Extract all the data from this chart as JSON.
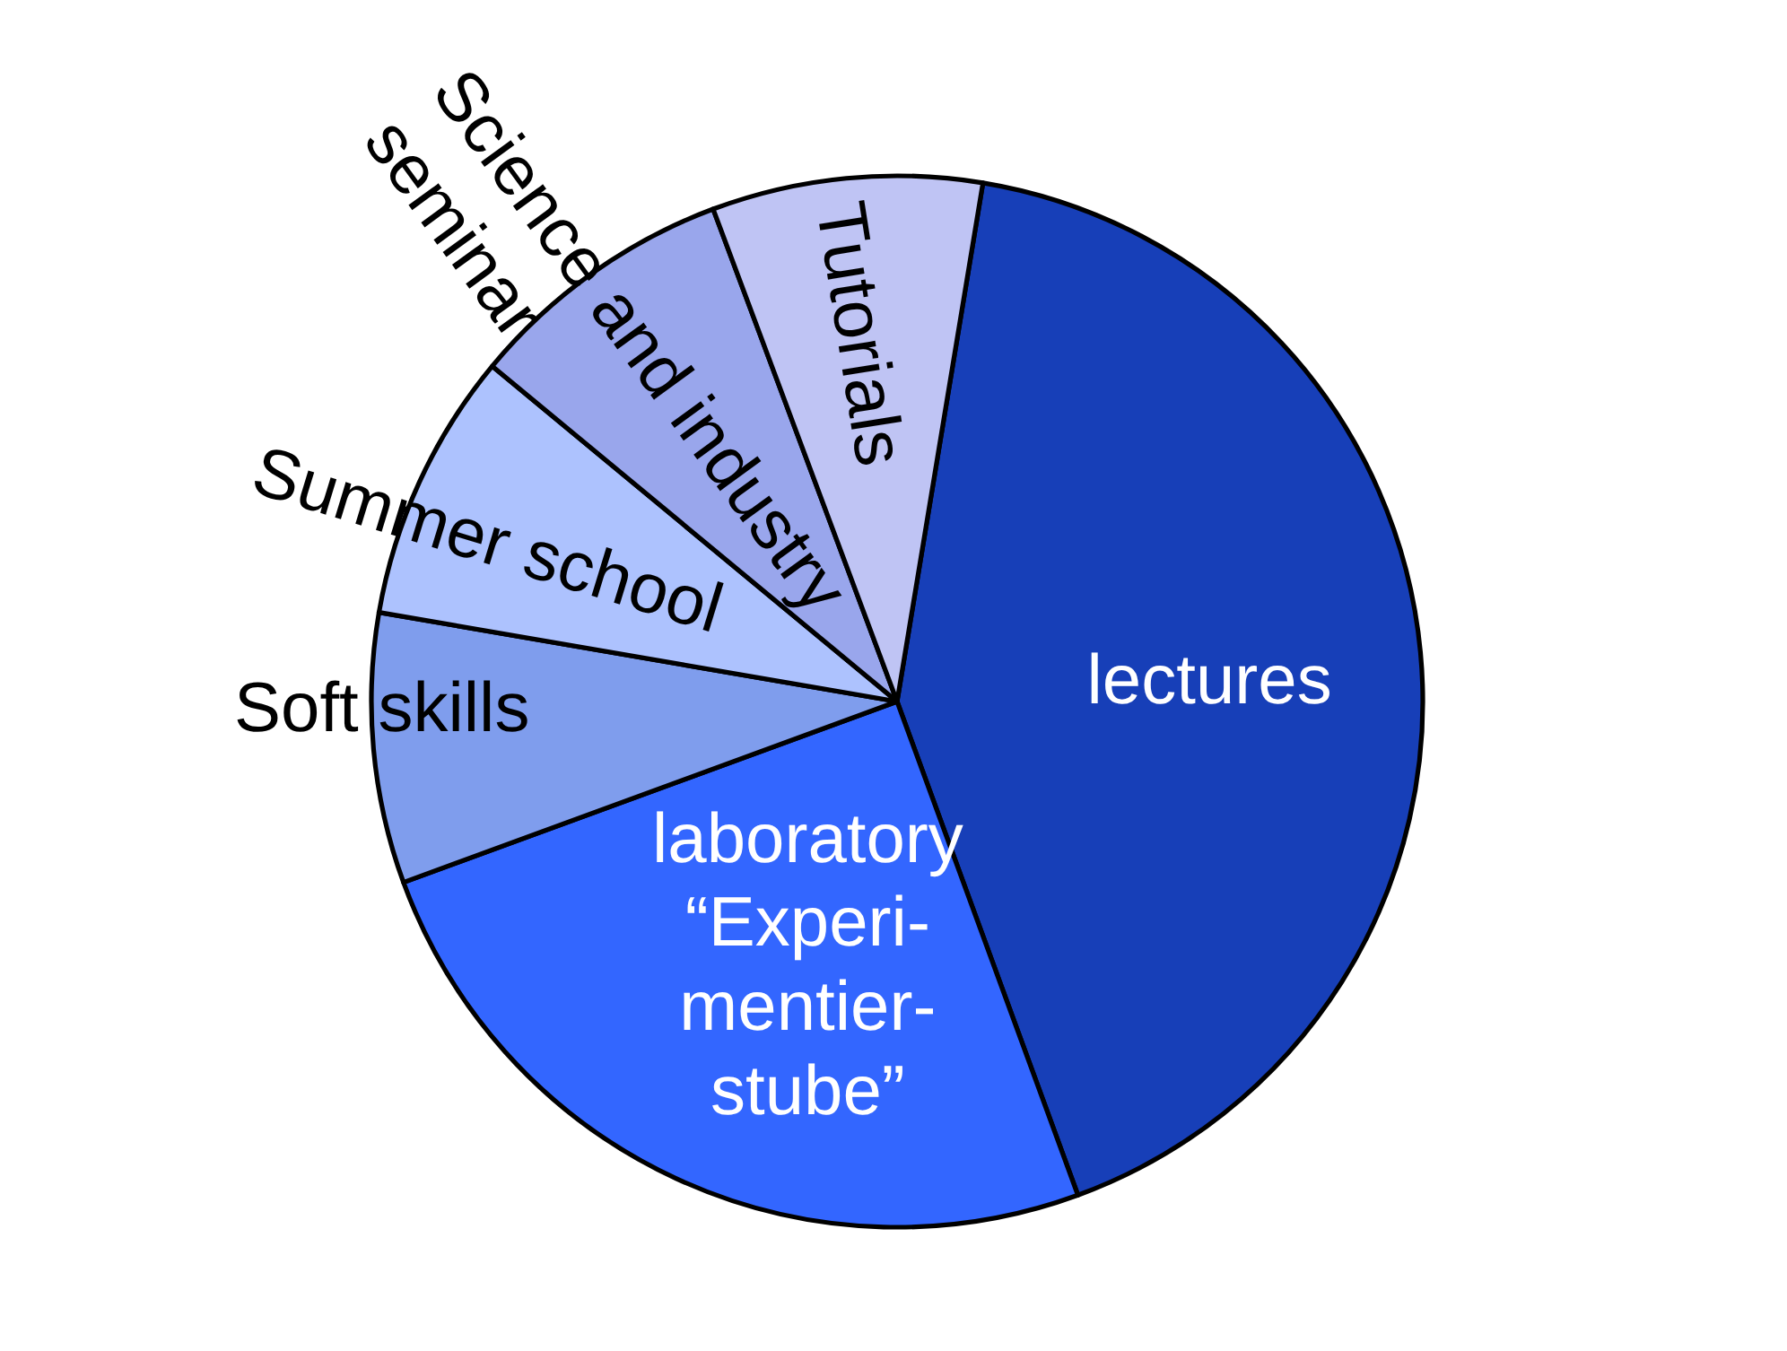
{
  "chart_data": {
    "type": "pie",
    "categories": [
      "lectures",
      "laboratory\n“Experi-\nmentier-\nstube”",
      "Soft skills",
      "Summer school",
      "Science and industry\nseminar",
      "Tutorials"
    ],
    "values": [
      41.8,
      25,
      8.3,
      8.3,
      8.3,
      8.3
    ],
    "colors": [
      "#173fb8",
      "#3366ff",
      "#7f9ded",
      "#adc2fe",
      "#99a6ec",
      "#bfc4f4"
    ]
  }
}
